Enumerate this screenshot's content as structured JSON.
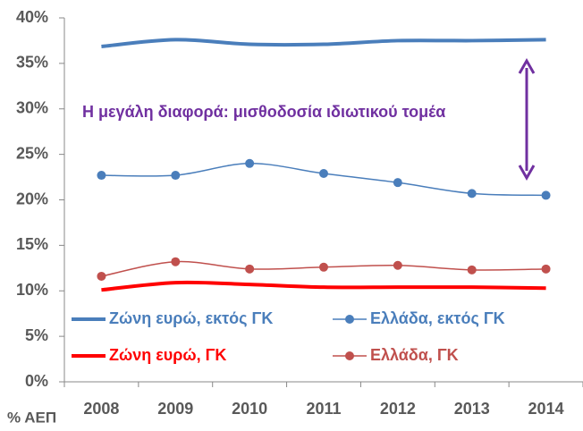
{
  "chart_data": {
    "type": "line",
    "categories": [
      "2008",
      "2009",
      "2010",
      "2011",
      "2012",
      "2013",
      "2014"
    ],
    "series": [
      {
        "name": "Ζώνη ευρώ, εκτός ΓΚ",
        "color": "#4a7ebb",
        "marker": false,
        "values": [
          36.85,
          37.6,
          37.1,
          37.1,
          37.5,
          37.5,
          37.6
        ]
      },
      {
        "name": "Ελλάδα, εκτός ΓΚ",
        "color": "#4a7ebb",
        "marker": true,
        "values": [
          22.7,
          22.7,
          24.0,
          22.9,
          21.9,
          20.7,
          20.5
        ]
      },
      {
        "name": "Ζώνη ευρώ, ΓΚ",
        "color": "#ff0000",
        "marker": false,
        "values": [
          10.1,
          10.9,
          10.7,
          10.4,
          10.4,
          10.4,
          10.3
        ]
      },
      {
        "name": "Ελλάδα, ΓΚ",
        "color": "#c0504d",
        "marker": true,
        "values": [
          11.6,
          13.2,
          12.4,
          12.6,
          12.8,
          12.3,
          12.4
        ]
      }
    ],
    "ylim": [
      0,
      40
    ],
    "yticks": [
      {
        "value": 0,
        "label": "0%"
      },
      {
        "value": 5,
        "label": "5%"
      },
      {
        "value": 10,
        "label": "10%"
      },
      {
        "value": 15,
        "label": "15%"
      },
      {
        "value": 20,
        "label": "20%"
      },
      {
        "value": 25,
        "label": "25%"
      },
      {
        "value": 30,
        "label": "30%"
      },
      {
        "value": 35,
        "label": "35%"
      },
      {
        "value": 40,
        "label": "40%"
      }
    ],
    "annotation": "Η μεγάλη διαφορά: μισθοδοσία  ιδιωτικού τομέα",
    "annotation_color": "#7030a0",
    "y_label": "% ΑΕΠ"
  }
}
